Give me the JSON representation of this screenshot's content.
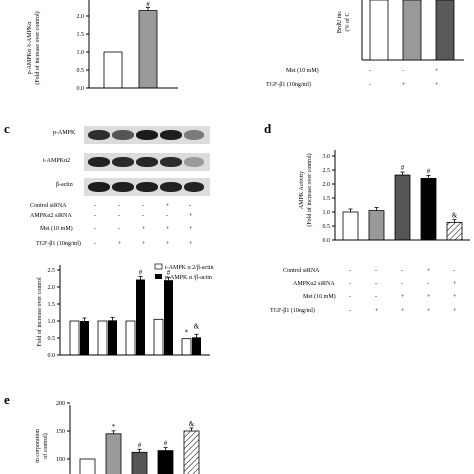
{
  "panel_a": {
    "ylabel_main": "p-AMPKα /t-AMPKα",
    "ylabel_sub": "(Fold of increase over control)",
    "yticks": [
      "0.0",
      "0.5",
      "1.0",
      "1.5",
      "2.0"
    ],
    "marker": "#"
  },
  "panel_b": {
    "ylabel_main": "BrdU inc",
    "ylabel_sub": "(% of C",
    "rows": [
      {
        "label": "Met (10 mM)",
        "signs": [
          "-",
          "-",
          "+"
        ]
      },
      {
        "label": "TGF-β1 (10ng/ml)",
        "signs": [
          "-",
          "+",
          "+"
        ]
      }
    ]
  },
  "panel_c": {
    "letter": "c",
    "blot_labels": [
      "p-AMPK",
      "t-AMPKα2",
      "β-actin"
    ],
    "rows": [
      {
        "label": "Control siRNA",
        "signs": [
          "-",
          "-",
          "-",
          "+",
          "-"
        ]
      },
      {
        "label": "AMPKα2 siRNA",
        "signs": [
          "-",
          "-",
          "-",
          "-",
          "+"
        ]
      },
      {
        "label": "Met (10 mM)",
        "signs": [
          "-",
          "-",
          "+",
          "+",
          "+"
        ]
      },
      {
        "label": "TGF-β1 (10ng/ml)",
        "signs": [
          "-",
          "+",
          "+",
          "+",
          "+"
        ]
      }
    ],
    "ylabel": "Fold of increase over control",
    "yticks": [
      "0.0",
      "0.5",
      "1.0",
      "1.5",
      "2.0",
      "2.5"
    ],
    "legend": [
      "t-AMPK α 2/β-actin",
      "p-AMPK α /β-actin"
    ],
    "annotations": [
      "#",
      "#",
      "*",
      "&"
    ]
  },
  "panel_d": {
    "letter": "d",
    "ylabel_main": "AMPK Activity",
    "ylabel_sub": "(Fold of increase over control)",
    "yticks": [
      "0.0",
      "0.5",
      "1.0",
      "1.5",
      "2.0",
      "2.5",
      "3.0"
    ],
    "annotations": [
      "#",
      "#",
      "&"
    ],
    "rows": [
      {
        "label": "Control siRNA",
        "signs": [
          "-",
          "-",
          "-",
          "+",
          "-"
        ]
      },
      {
        "label": "AMPKα2 siRNA",
        "signs": [
          "-",
          "-",
          "-",
          "-",
          "+"
        ]
      },
      {
        "label": "Met (10 mM)",
        "signs": [
          "-",
          "-",
          "+",
          "+",
          "+"
        ]
      },
      {
        "label": "TGF-β1 (10ng/ml)",
        "signs": [
          "-",
          "+",
          "+",
          "+",
          "+"
        ]
      }
    ]
  },
  "panel_e": {
    "letter": "e",
    "ylabel_main": "in corporation",
    "ylabel_sub": "of control)",
    "yticks": [
      "100",
      "150",
      "200"
    ],
    "annotations": [
      "*",
      "#",
      "#",
      "&"
    ]
  },
  "chart_data": [
    {
      "panel": "a",
      "type": "bar",
      "categories": [
        "1",
        "2"
      ],
      "values": [
        1.0,
        2.15
      ],
      "ylim": [
        0,
        2.2
      ]
    },
    {
      "panel": "c",
      "type": "bar",
      "categories": [
        "1",
        "2",
        "3",
        "4",
        "5"
      ],
      "series": [
        {
          "name": "t-AMPK α 2/β-actin",
          "values": [
            1.0,
            1.0,
            1.0,
            1.05,
            0.48
          ]
        },
        {
          "name": "p-AMPK α /β-actin",
          "values": [
            1.0,
            1.02,
            2.22,
            2.2,
            0.52
          ]
        }
      ],
      "ylim": [
        0,
        2.5
      ]
    },
    {
      "panel": "d",
      "type": "bar",
      "categories": [
        "1",
        "2",
        "3",
        "4",
        "5"
      ],
      "values": [
        1.0,
        1.05,
        2.32,
        2.2,
        0.63
      ],
      "ylim": [
        0,
        3.0
      ]
    },
    {
      "panel": "e",
      "type": "bar",
      "categories": [
        "1",
        "2",
        "3",
        "4",
        "5"
      ],
      "values": [
        100,
        145,
        112,
        115,
        150
      ],
      "ylim": [
        100,
        200
      ]
    }
  ]
}
